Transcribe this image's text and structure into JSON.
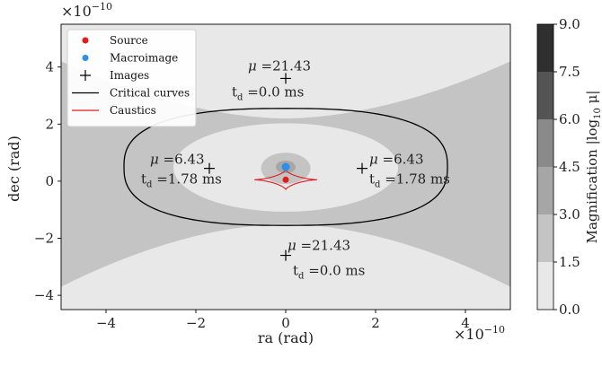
{
  "chart_data": {
    "type": "contour",
    "xlabel": "ra (rad)",
    "ylabel": "dec (rad)",
    "x_scale_label": "×10",
    "x_scale_exp": "−10",
    "y_scale_label": "×10",
    "y_scale_exp": "−10",
    "xlim": [
      -5,
      5
    ],
    "ylim": [
      -4.5,
      5.5
    ],
    "x_ticks": [
      {
        "value": -4,
        "label": "−4"
      },
      {
        "value": -2,
        "label": "−2"
      },
      {
        "value": 0,
        "label": "0"
      },
      {
        "value": 2,
        "label": "2"
      },
      {
        "value": 4,
        "label": "4"
      }
    ],
    "y_ticks": [
      {
        "value": -4,
        "label": "−4"
      },
      {
        "value": -2,
        "label": "−2"
      },
      {
        "value": 0,
        "label": "0"
      },
      {
        "value": 2,
        "label": "2"
      },
      {
        "value": 4,
        "label": "4"
      }
    ],
    "legend_position": "top-left",
    "legend": [
      {
        "label": "Source",
        "kind": "dot",
        "color": "#e31a1c"
      },
      {
        "label": "Macroimage",
        "kind": "dot",
        "color": "#2e8ee8"
      },
      {
        "label": "Images",
        "kind": "plus",
        "color": "#000000"
      },
      {
        "label": "Critical curves",
        "kind": "line",
        "color": "#000000"
      },
      {
        "label": "Caustics",
        "kind": "line",
        "color": "#e31a1c"
      }
    ],
    "source": {
      "x": 0.0,
      "y": 0.05
    },
    "macroimage": {
      "x": 0.0,
      "y": 0.5
    },
    "images": [
      {
        "x": 0.0,
        "y": 3.6,
        "mu": "21.43",
        "td": "0.0"
      },
      {
        "x": -1.7,
        "y": 0.45,
        "mu": "6.43",
        "td": "1.78"
      },
      {
        "x": 1.7,
        "y": 0.45,
        "mu": "6.43",
        "td": "1.78"
      },
      {
        "x": 0.0,
        "y": -2.6,
        "mu": "21.43",
        "td": "0.0"
      }
    ],
    "mu_symbol": "μ",
    "td_symbol": "t",
    "td_subscript": "d",
    "td_unit": "ms",
    "critical_curve": {
      "rx": 3.6,
      "ry": 2.05,
      "cx": 0.0,
      "cy": 0.5
    },
    "caustic": {
      "cx": 0.0,
      "cy": 0.05,
      "half_width": 0.7,
      "half_height": 0.35
    },
    "colorbar": {
      "label_prefix": "Magnification |log",
      "label_sub": "10",
      "label_suffix": " μ|",
      "levels": [
        0.0,
        1.5,
        3.0,
        4.5,
        6.0,
        7.5,
        9.0
      ],
      "tick_labels": [
        "0.0",
        "1.5",
        "3.0",
        "4.5",
        "6.0",
        "7.5",
        "9.0"
      ],
      "colors": [
        "#e8e8e8",
        "#c4c4c4",
        "#a6a6a6",
        "#8a8a8a",
        "#545454",
        "#2f2f2f"
      ]
    },
    "grid": false
  }
}
